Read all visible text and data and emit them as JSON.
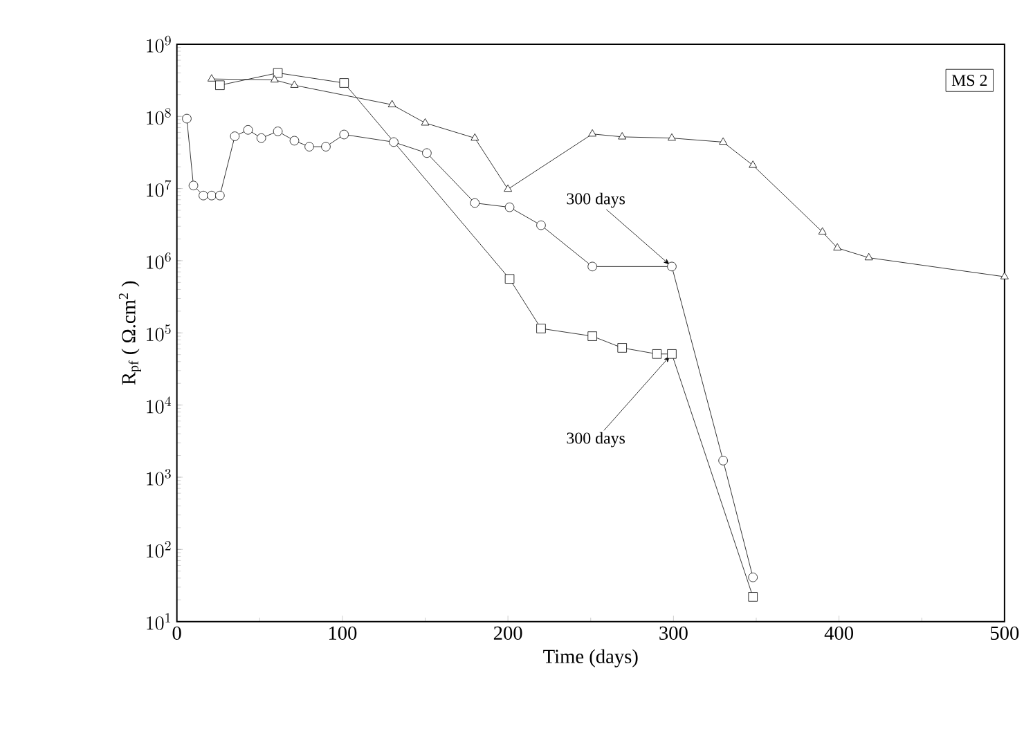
{
  "chart_data": {
    "type": "line",
    "xlabel": "Time  (days)",
    "ylabel": "R$_{pf}$ ( Ω.cm$^{2}$ )",
    "log": "y",
    "grid": false,
    "xlim": [
      0,
      500
    ],
    "xticks": [
      0,
      100,
      200,
      300,
      400,
      500
    ],
    "ylim": [
      10,
      1000000000
    ],
    "yticks": [
      {
        "value": 10,
        "label": "10^{1}"
      },
      {
        "value": 100,
        "label": "10^{2}"
      },
      {
        "value": 1000,
        "label": "10^{3}"
      },
      {
        "value": 10000,
        "label": "10^{4}"
      },
      {
        "value": 100000,
        "label": "10^{5}"
      },
      {
        "value": 1000000,
        "label": "10^{6}"
      },
      {
        "value": 10000000,
        "label": "10^{7}"
      },
      {
        "value": 100000000,
        "label": "10^{8}"
      },
      {
        "value": 1000000000,
        "label": "10^{9}"
      }
    ],
    "series": [
      {
        "color": "#000000",
        "marker": "circle",
        "x": [
          6,
          10,
          16,
          21,
          26,
          35,
          43,
          51,
          61,
          71,
          80,
          90,
          101,
          131,
          151,
          180,
          201,
          220,
          251,
          299,
          330,
          348
        ],
        "values": [
          93000000,
          11000000,
          8000000,
          8000000,
          8000000,
          53000000,
          65000000,
          50000000,
          62000000,
          46000000,
          38000000,
          38000000,
          56000000,
          44000000,
          31000000,
          6300000,
          5500000,
          3100000,
          830000,
          830000,
          1700,
          41
        ]
      },
      {
        "color": "#000000",
        "marker": "square",
        "x": [
          26,
          61,
          101,
          201,
          220,
          251,
          269,
          290,
          299,
          348
        ],
        "values": [
          270000000,
          400000000,
          290000000,
          560000,
          115000,
          90000,
          62000,
          51000,
          51000,
          22
        ]
      },
      {
        "color": "#000000",
        "marker": "triangle",
        "x": [
          21,
          59,
          71,
          130,
          150,
          180,
          200,
          251,
          269,
          299,
          330,
          348,
          390,
          399,
          418,
          500
        ],
        "values": [
          330000000,
          320000000,
          270000000,
          145000000,
          81000000,
          50000000,
          9800000,
          57000000,
          52000000,
          50000000,
          44000000,
          21000000,
          2500000,
          1500000,
          1100000,
          600000
        ]
      }
    ],
    "annotations": [
      {
        "text": "300 days",
        "x": 299,
        "y": 830000
      },
      {
        "text": "300 days",
        "x": 299,
        "y": 51000
      },
      "MS 2"
    ]
  }
}
